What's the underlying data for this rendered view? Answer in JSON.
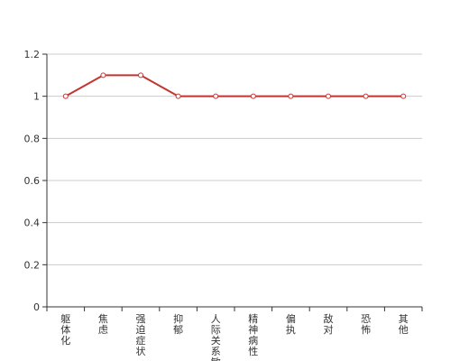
{
  "chart_data": {
    "type": "line",
    "categories": [
      "躯体化",
      "焦虑",
      "强迫症状",
      "抑郁",
      "人际关系敏感",
      "精神病性",
      "偏执",
      "敌对",
      "恐怖",
      "其他"
    ],
    "series": [
      {
        "values": [
          1,
          1.1,
          1.1,
          1,
          1,
          1,
          1,
          1,
          1,
          1
        ]
      }
    ],
    "ylim": [
      0,
      1.2
    ],
    "yticks": [
      "0",
      "0.2",
      "0.4",
      "0.6",
      "0.8",
      "1",
      "1.2"
    ],
    "grid": true,
    "colors": {
      "line": "#c23531",
      "grid": "#cccccc",
      "axis": "#333333"
    }
  }
}
